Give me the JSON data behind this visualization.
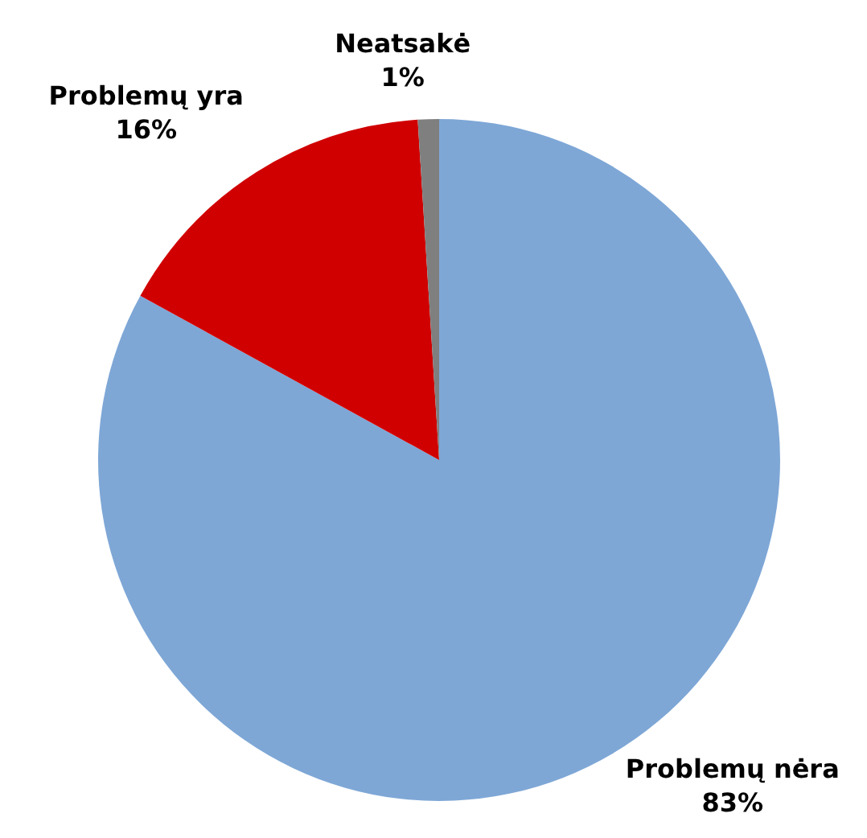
{
  "chart_data": {
    "type": "pie",
    "categories": [
      "Problemų nėra",
      "Problemų yra",
      "Neatsakė"
    ],
    "values": [
      83,
      16,
      1
    ],
    "value_labels": [
      "83%",
      "16%",
      "1%"
    ],
    "colors": [
      "#7ea7d6",
      "#d00000",
      "#7f7f7f"
    ],
    "legend": false
  }
}
